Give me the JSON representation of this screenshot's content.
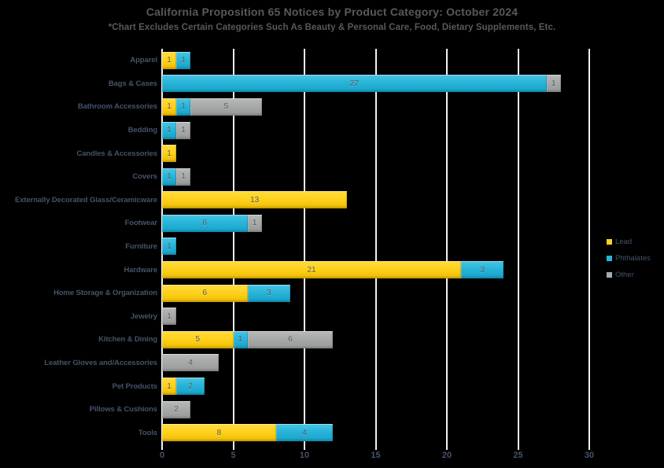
{
  "title": "California Proposition 65 Notices by Product Category: October 2024",
  "subtitle": "*Chart Excludes Certain Categories Such As Beauty & Personal Care, Food, Dietary Supplements, Etc.",
  "chart_data": {
    "type": "bar",
    "orientation": "horizontal",
    "stacked": true,
    "title": "California Proposition 65 Notices by Product Category: October 2024",
    "categories": [
      "Apparel",
      "Bags & Cases",
      "Bathroom Accessories",
      "Bedding",
      "Candles & Accessories",
      "Covers",
      "Externally Decorated Glass/Ceramicware",
      "Footwear",
      "Furniture",
      "Hardware",
      "Home Storage & Organization",
      "Jewelry",
      "Kitchen & Dining",
      "Leather Gloves and/Accessories",
      "Pet Products",
      "Pillows & Cushions",
      "Tools"
    ],
    "series": [
      {
        "name": "Lead",
        "color": "#FFD21E",
        "values": [
          1,
          0,
          1,
          0,
          1,
          0,
          13,
          0,
          0,
          21,
          6,
          0,
          5,
          0,
          1,
          0,
          8
        ]
      },
      {
        "name": "Phthalates",
        "color": "#29B4D9",
        "values": [
          1,
          27,
          1,
          1,
          0,
          1,
          0,
          6,
          1,
          3,
          3,
          0,
          1,
          0,
          2,
          0,
          4
        ]
      },
      {
        "name": "Other",
        "color": "#A8AAAA",
        "values": [
          0,
          1,
          5,
          1,
          0,
          1,
          0,
          1,
          0,
          0,
          0,
          1,
          6,
          4,
          0,
          2,
          0
        ]
      }
    ],
    "xlim": [
      0,
      30
    ],
    "xticks": [
      0,
      5,
      10,
      15,
      20,
      25,
      30
    ],
    "legend_position": "right",
    "grid": true
  },
  "colors": {
    "background": "#000000",
    "title_text": "#595959",
    "category_label_text": "#44546A",
    "value_label_text": "#595959",
    "axis_label_text": "#44546A",
    "gridline": "#F2F2F2",
    "lead": "#FFD21E",
    "phthalates": "#29B4D9",
    "other": "#A8AAAA"
  }
}
